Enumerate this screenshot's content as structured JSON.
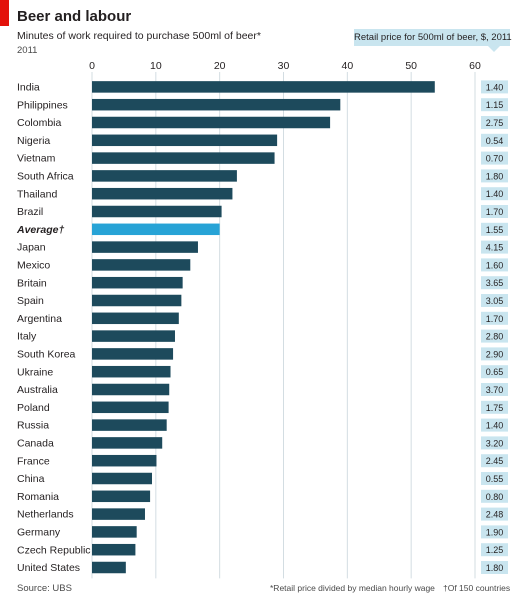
{
  "title": "Beer and labour",
  "subtitle": "Minutes of work required to purchase 500ml of beer*",
  "year": "2011",
  "price_header": "Retail price for 500ml of beer, $, 2011",
  "source": "Source: UBS",
  "footnote": "*Retail price divided by median hourly wage",
  "footnote2": "†Of 150 countries",
  "colors": {
    "bar": "#1d4a5c",
    "highlight": "#27a3d6",
    "price_bg": "#c9e5ef",
    "grid": "#d3dde2",
    "brand": "#e3120b"
  },
  "chart_data": {
    "type": "bar",
    "orientation": "horizontal",
    "xlim": [
      0,
      60
    ],
    "xticks": [
      0,
      10,
      20,
      30,
      40,
      50,
      60
    ],
    "grid": true,
    "categories": [
      "India",
      "Philippines",
      "Colombia",
      "Nigeria",
      "Vietnam",
      "South Africa",
      "Thailand",
      "Brazil",
      "Average†",
      "Japan",
      "Mexico",
      "Britain",
      "Spain",
      "Argentina",
      "Italy",
      "South Korea",
      "Ukraine",
      "Australia",
      "Poland",
      "Russia",
      "Canada",
      "France",
      "China",
      "Romania",
      "Netherlands",
      "Germany",
      "Czech Republic",
      "United States"
    ],
    "values": [
      53.7,
      38.9,
      37.3,
      29.0,
      28.6,
      22.7,
      22.0,
      20.3,
      20.0,
      16.6,
      15.4,
      14.2,
      14.0,
      13.6,
      13.0,
      12.7,
      12.3,
      12.1,
      12.0,
      11.7,
      11.0,
      10.1,
      9.4,
      9.1,
      8.3,
      7.0,
      6.8,
      5.3
    ],
    "highlight": [
      "Average†"
    ],
    "prices": [
      "1.40",
      "1.15",
      "2.75",
      "0.54",
      "0.70",
      "1.80",
      "1.40",
      "1.70",
      "1.55",
      "4.15",
      "1.60",
      "3.65",
      "3.05",
      "1.70",
      "2.80",
      "2.90",
      "0.65",
      "3.70",
      "1.75",
      "1.40",
      "3.20",
      "2.45",
      "0.55",
      "0.80",
      "2.48",
      "1.90",
      "1.25",
      "1.80"
    ]
  }
}
